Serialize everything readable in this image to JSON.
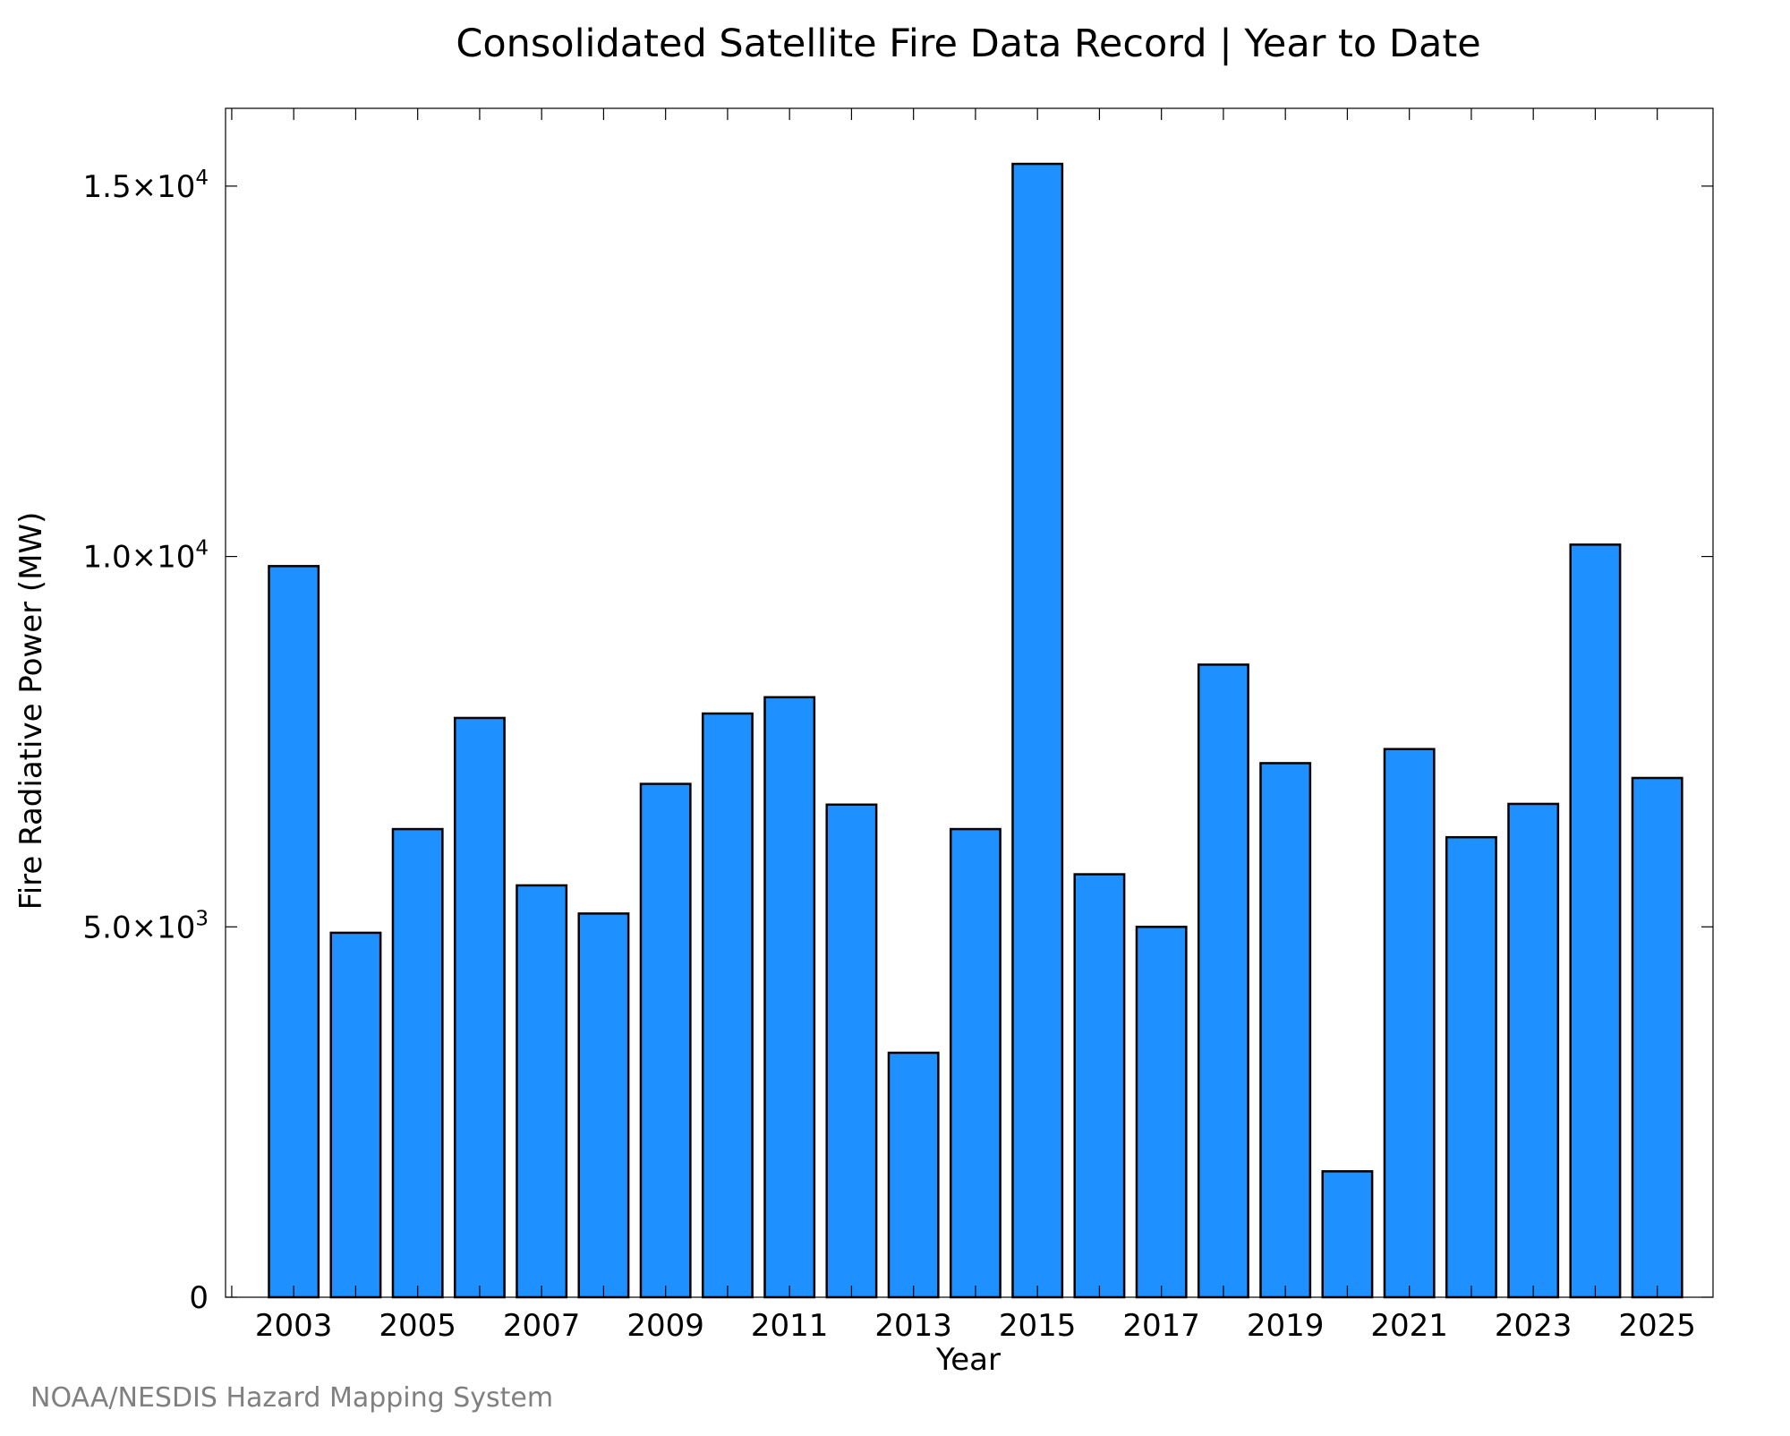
{
  "chart_data": {
    "type": "bar",
    "title": "Consolidated Satellite Fire Data Record | Year to Date",
    "xlabel": "Year",
    "ylabel": "Fire Radiative Power (MW)",
    "credit": "NOAA/NESDIS Hazard Mapping System",
    "categories": [
      "2003",
      "2004",
      "2005",
      "2006",
      "2007",
      "2008",
      "2009",
      "2010",
      "2011",
      "2012",
      "2013",
      "2014",
      "2015",
      "2016",
      "2017",
      "2018",
      "2019",
      "2020",
      "2021",
      "2022",
      "2023",
      "2024",
      "2025"
    ],
    "values": [
      9870,
      4920,
      6320,
      7820,
      5560,
      5180,
      6930,
      7880,
      8100,
      6650,
      3300,
      6320,
      15300,
      5710,
      5000,
      8540,
      7210,
      1700,
      7400,
      6210,
      6660,
      10160,
      7010
    ],
    "x_tick_labels": [
      "2003",
      "2005",
      "2007",
      "2009",
      "2011",
      "2013",
      "2015",
      "2017",
      "2019",
      "2021",
      "2023",
      "2025"
    ],
    "y_ticks": [
      {
        "value": 0,
        "mantissa": "0",
        "exponent": ""
      },
      {
        "value": 5000,
        "mantissa": "5.0×10",
        "exponent": "3"
      },
      {
        "value": 10000,
        "mantissa": "1.0×10",
        "exponent": "4"
      },
      {
        "value": 15000,
        "mantissa": "1.5×10",
        "exponent": "4"
      }
    ],
    "ylim": [
      0,
      16050
    ],
    "xlim": [
      2001.9,
      2025.9
    ],
    "bar_color": "#1e90ff",
    "bar_edge_color": "#000000",
    "grid": false,
    "legend": "none"
  }
}
